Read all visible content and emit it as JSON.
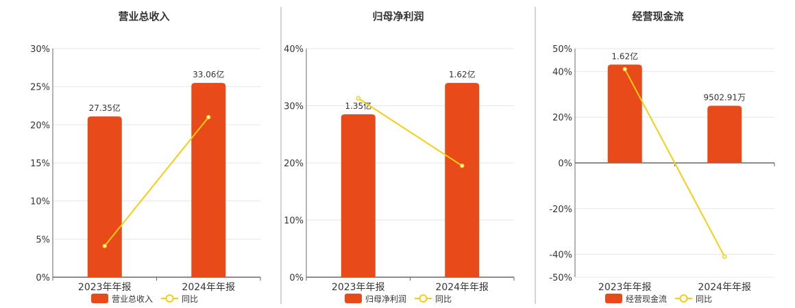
{
  "colors": {
    "bar": "#E84A1A",
    "line": "#F5CE12",
    "axis": "#666666",
    "grid": "#E6E6E6",
    "text": "#333333",
    "divider": "#AAAAAA"
  },
  "x_categories": [
    "2023年年报",
    "2024年年报"
  ],
  "chart_data": [
    {
      "type": "bar",
      "title": "营业总收入",
      "categories": [
        "2023年年报",
        "2024年年报"
      ],
      "bar_labels": [
        "27.35亿",
        "33.06亿"
      ],
      "series": [
        {
          "name": "营业总收入",
          "type": "bar",
          "values": [
            21.1,
            25.5
          ]
        },
        {
          "name": "同比",
          "type": "line",
          "values": [
            4.1,
            21.0
          ]
        }
      ],
      "yticks": [
        "30%",
        "25%",
        "20%",
        "15%",
        "10%",
        "5%",
        "0%"
      ],
      "ylim": [
        0,
        30
      ]
    },
    {
      "type": "bar",
      "title": "归母净利润",
      "categories": [
        "2023年年报",
        "2024年年报"
      ],
      "bar_labels": [
        "1.35亿",
        "1.62亿"
      ],
      "series": [
        {
          "name": "归母净利润",
          "type": "bar",
          "values": [
            28.5,
            34.0
          ]
        },
        {
          "name": "同比",
          "type": "line",
          "values": [
            31.3,
            19.5
          ]
        }
      ],
      "yticks": [
        "40%",
        "30%",
        "20%",
        "10%",
        "0%"
      ],
      "ylim": [
        0,
        40
      ]
    },
    {
      "type": "bar",
      "title": "经营现金流",
      "categories": [
        "2023年年报",
        "2024年年报"
      ],
      "bar_labels": [
        "1.62亿",
        "9502.91万"
      ],
      "series": [
        {
          "name": "经营现金流",
          "type": "bar",
          "values": [
            43.0,
            25.0
          ]
        },
        {
          "name": "同比",
          "type": "line",
          "values": [
            41.0,
            -41.0
          ]
        }
      ],
      "yticks": [
        "50%",
        "40%",
        "20%",
        "0%",
        "-20%",
        "-40%",
        "-50%"
      ],
      "ylim": [
        -50,
        50
      ]
    }
  ]
}
